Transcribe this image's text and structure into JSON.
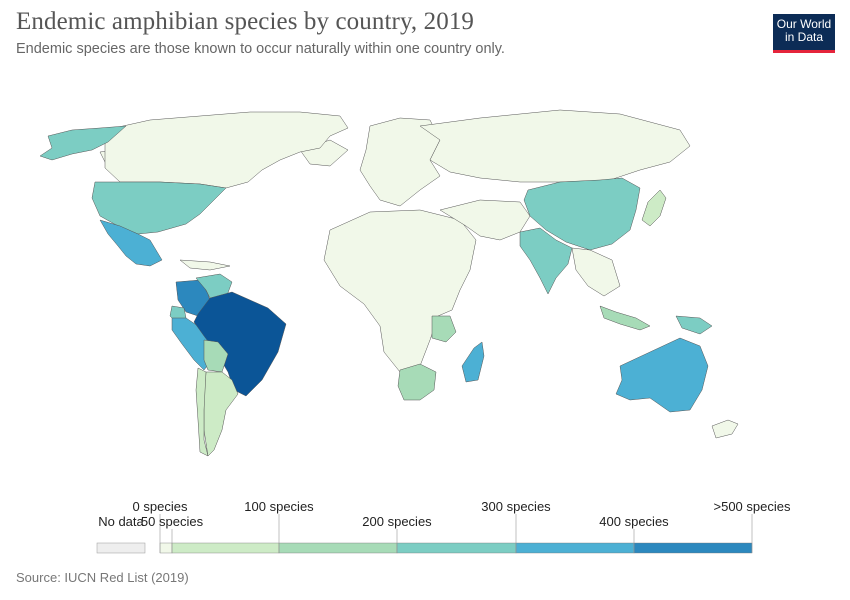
{
  "header": {
    "title": "Endemic amphibian species by country, 2019",
    "subtitle": "Endemic species are those known to occur naturally within one country only."
  },
  "logo": {
    "line1": "Our World",
    "line2": "in Data",
    "bg_color": "#0c2c56",
    "accent_color": "#e5243b"
  },
  "legend": {
    "no_data_label": "No data",
    "no_data_color": "#eeeeee",
    "bins": [
      {
        "label": "0 species",
        "color": "#f1f8e9"
      },
      {
        "label": "50 species",
        "color": "#cdebc6"
      },
      {
        "label": "100 species",
        "color": "#a7dbb7"
      },
      {
        "label": "200 species",
        "color": "#7ccdc3"
      },
      {
        "label": "300 species",
        "color": "#4cb0d4"
      },
      {
        "label": "400 species",
        "color": "#2c88be"
      },
      {
        "label": ">500 species",
        "color": "#0b5597"
      }
    ]
  },
  "map_data": {
    "type": "choropleth",
    "regions": [
      {
        "name": "Canada",
        "bin": 0
      },
      {
        "name": "Alaska",
        "bin": 3
      },
      {
        "name": "United States",
        "bin": 3
      },
      {
        "name": "Mexico",
        "bin": 4
      },
      {
        "name": "Colombia",
        "bin": 5
      },
      {
        "name": "Venezuela",
        "bin": 3
      },
      {
        "name": "Ecuador",
        "bin": 3
      },
      {
        "name": "Peru",
        "bin": 4
      },
      {
        "name": "Brazil",
        "bin": 6
      },
      {
        "name": "Bolivia",
        "bin": 2
      },
      {
        "name": "Argentina",
        "bin": 1
      },
      {
        "name": "Chile",
        "bin": 1
      },
      {
        "name": "Europe",
        "bin": 0
      },
      {
        "name": "Russia",
        "bin": 0
      },
      {
        "name": "China",
        "bin": 3
      },
      {
        "name": "India",
        "bin": 3
      },
      {
        "name": "Madagascar",
        "bin": 4
      },
      {
        "name": "Tanzania",
        "bin": 2
      },
      {
        "name": "Southern Africa",
        "bin": 2
      },
      {
        "name": "Australia",
        "bin": 4
      },
      {
        "name": "Papua New Guinea",
        "bin": 3
      },
      {
        "name": "Indonesia",
        "bin": 2
      },
      {
        "name": "New Zealand",
        "bin": 0
      },
      {
        "name": "Japan",
        "bin": 1
      }
    ]
  },
  "footer": {
    "source": "Source: IUCN Red List (2019)"
  }
}
